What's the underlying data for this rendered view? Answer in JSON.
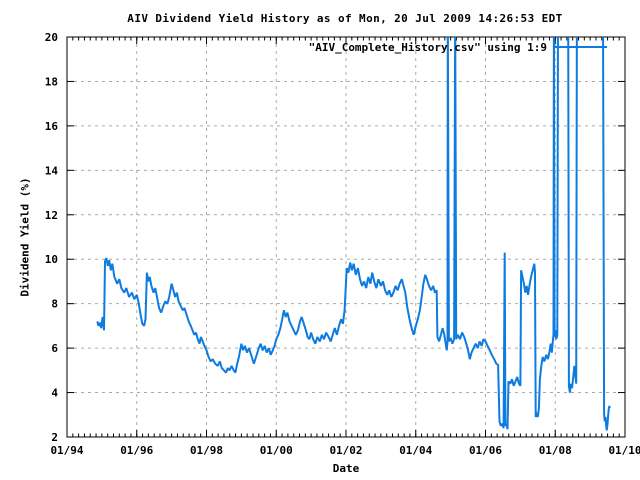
{
  "chart_data": {
    "type": "line",
    "title": "AIV Dividend Yield History as of Mon, 20 Jul 2009 14:26:53 EDT",
    "xlabel": "Date",
    "ylabel": "Dividend Yield (%)",
    "legend": {
      "label": "\"AIV_Complete_History.csv\" using 1:9",
      "position": "top-right-inside"
    },
    "grid": true,
    "x_range": [
      1994,
      2010
    ],
    "y_range": [
      2,
      20
    ],
    "x_ticks": [
      {
        "value": 1994,
        "label": "01/94"
      },
      {
        "value": 1996,
        "label": "01/96"
      },
      {
        "value": 1998,
        "label": "01/98"
      },
      {
        "value": 2000,
        "label": "01/00"
      },
      {
        "value": 2002,
        "label": "01/02"
      },
      {
        "value": 2004,
        "label": "01/04"
      },
      {
        "value": 2006,
        "label": "01/06"
      },
      {
        "value": 2008,
        "label": "01/08"
      },
      {
        "value": 2010,
        "label": "01/10"
      }
    ],
    "y_ticks": [
      2,
      4,
      6,
      8,
      10,
      12,
      14,
      16,
      18,
      20
    ],
    "x_minor_tick_step_years": 0.16667,
    "colors": {
      "line": "#0d7be0",
      "grid": "#aaaaaa",
      "axis": "#000000",
      "background": "#ffffff",
      "text": "#000000"
    },
    "offscale_encoding": "y values of 21 depict spikes that exceed the 20% axis limit (clipped at plot top)",
    "series": [
      {
        "name": "\"AIV_Complete_History.csv\" using 1:9",
        "points": [
          [
            1994.87,
            7.2
          ],
          [
            1994.9,
            7.0
          ],
          [
            1994.94,
            7.15
          ],
          [
            1994.98,
            6.9
          ],
          [
            1995.02,
            7.4
          ],
          [
            1995.06,
            6.8
          ],
          [
            1995.09,
            9.9
          ],
          [
            1995.13,
            10.05
          ],
          [
            1995.17,
            9.7
          ],
          [
            1995.21,
            9.95
          ],
          [
            1995.26,
            9.5
          ],
          [
            1995.3,
            9.8
          ],
          [
            1995.36,
            9.2
          ],
          [
            1995.44,
            8.9
          ],
          [
            1995.5,
            9.1
          ],
          [
            1995.56,
            8.7
          ],
          [
            1995.64,
            8.5
          ],
          [
            1995.7,
            8.7
          ],
          [
            1995.78,
            8.3
          ],
          [
            1995.86,
            8.5
          ],
          [
            1995.93,
            8.2
          ],
          [
            1996.0,
            8.4
          ],
          [
            1996.06,
            8.0
          ],
          [
            1996.11,
            7.5
          ],
          [
            1996.16,
            7.1
          ],
          [
            1996.21,
            7.0
          ],
          [
            1996.25,
            7.3
          ],
          [
            1996.29,
            9.4
          ],
          [
            1996.33,
            9.0
          ],
          [
            1996.37,
            9.2
          ],
          [
            1996.42,
            8.8
          ],
          [
            1996.48,
            8.5
          ],
          [
            1996.53,
            8.7
          ],
          [
            1996.58,
            8.3
          ],
          [
            1996.64,
            7.8
          ],
          [
            1996.7,
            7.6
          ],
          [
            1996.76,
            7.9
          ],
          [
            1996.82,
            8.1
          ],
          [
            1996.88,
            8.0
          ],
          [
            1996.93,
            8.3
          ],
          [
            1997.0,
            8.9
          ],
          [
            1997.05,
            8.6
          ],
          [
            1997.1,
            8.3
          ],
          [
            1997.15,
            8.5
          ],
          [
            1997.2,
            8.1
          ],
          [
            1997.26,
            7.9
          ],
          [
            1997.32,
            7.7
          ],
          [
            1997.37,
            7.8
          ],
          [
            1997.43,
            7.5
          ],
          [
            1997.49,
            7.2
          ],
          [
            1997.55,
            7.0
          ],
          [
            1997.6,
            6.8
          ],
          [
            1997.65,
            6.6
          ],
          [
            1997.7,
            6.7
          ],
          [
            1997.75,
            6.4
          ],
          [
            1997.8,
            6.2
          ],
          [
            1997.84,
            6.5
          ],
          [
            1997.89,
            6.3
          ],
          [
            1997.94,
            6.1
          ],
          [
            1998.0,
            5.9
          ],
          [
            1998.06,
            5.6
          ],
          [
            1998.12,
            5.4
          ],
          [
            1998.18,
            5.5
          ],
          [
            1998.25,
            5.3
          ],
          [
            1998.32,
            5.2
          ],
          [
            1998.38,
            5.4
          ],
          [
            1998.44,
            5.1
          ],
          [
            1998.5,
            5.0
          ],
          [
            1998.56,
            4.9
          ],
          [
            1998.61,
            5.1
          ],
          [
            1998.66,
            5.0
          ],
          [
            1998.72,
            5.2
          ],
          [
            1998.78,
            5.0
          ],
          [
            1998.83,
            4.9
          ],
          [
            1998.88,
            5.3
          ],
          [
            1998.93,
            5.6
          ],
          [
            1999.0,
            6.2
          ],
          [
            1999.05,
            5.9
          ],
          [
            1999.1,
            6.1
          ],
          [
            1999.16,
            5.8
          ],
          [
            1999.22,
            6.0
          ],
          [
            1999.3,
            5.6
          ],
          [
            1999.36,
            5.3
          ],
          [
            1999.42,
            5.6
          ],
          [
            1999.5,
            6.0
          ],
          [
            1999.55,
            6.2
          ],
          [
            1999.61,
            5.9
          ],
          [
            1999.67,
            6.1
          ],
          [
            1999.73,
            5.8
          ],
          [
            1999.79,
            6.0
          ],
          [
            1999.84,
            5.7
          ],
          [
            1999.9,
            5.9
          ],
          [
            1999.95,
            6.1
          ],
          [
            2000.0,
            6.4
          ],
          [
            2000.06,
            6.6
          ],
          [
            2000.12,
            6.9
          ],
          [
            2000.17,
            7.3
          ],
          [
            2000.22,
            7.7
          ],
          [
            2000.27,
            7.4
          ],
          [
            2000.32,
            7.6
          ],
          [
            2000.38,
            7.2
          ],
          [
            2000.44,
            7.0
          ],
          [
            2000.5,
            6.8
          ],
          [
            2000.56,
            6.6
          ],
          [
            2000.62,
            6.8
          ],
          [
            2000.68,
            7.2
          ],
          [
            2000.73,
            7.4
          ],
          [
            2000.79,
            7.1
          ],
          [
            2000.85,
            6.8
          ],
          [
            2000.9,
            6.5
          ],
          [
            2000.95,
            6.4
          ],
          [
            2001.0,
            6.7
          ],
          [
            2001.06,
            6.4
          ],
          [
            2001.12,
            6.2
          ],
          [
            2001.18,
            6.5
          ],
          [
            2001.25,
            6.3
          ],
          [
            2001.31,
            6.6
          ],
          [
            2001.37,
            6.4
          ],
          [
            2001.43,
            6.7
          ],
          [
            2001.5,
            6.5
          ],
          [
            2001.56,
            6.3
          ],
          [
            2001.62,
            6.6
          ],
          [
            2001.68,
            6.9
          ],
          [
            2001.74,
            6.6
          ],
          [
            2001.8,
            7.0
          ],
          [
            2001.86,
            7.3
          ],
          [
            2001.91,
            7.1
          ],
          [
            2001.96,
            7.7
          ],
          [
            2002.02,
            9.6
          ],
          [
            2002.07,
            9.4
          ],
          [
            2002.12,
            9.85
          ],
          [
            2002.17,
            9.5
          ],
          [
            2002.22,
            9.8
          ],
          [
            2002.28,
            9.3
          ],
          [
            2002.34,
            9.6
          ],
          [
            2002.4,
            9.1
          ],
          [
            2002.46,
            8.8
          ],
          [
            2002.52,
            9.0
          ],
          [
            2002.58,
            8.7
          ],
          [
            2002.64,
            9.2
          ],
          [
            2002.7,
            8.9
          ],
          [
            2002.75,
            9.4
          ],
          [
            2002.81,
            9.0
          ],
          [
            2002.87,
            8.7
          ],
          [
            2002.93,
            9.1
          ],
          [
            2003.0,
            8.8
          ],
          [
            2003.06,
            9.0
          ],
          [
            2003.12,
            8.6
          ],
          [
            2003.18,
            8.4
          ],
          [
            2003.24,
            8.6
          ],
          [
            2003.3,
            8.3
          ],
          [
            2003.36,
            8.5
          ],
          [
            2003.42,
            8.8
          ],
          [
            2003.48,
            8.6
          ],
          [
            2003.54,
            8.9
          ],
          [
            2003.6,
            9.1
          ],
          [
            2003.65,
            8.8
          ],
          [
            2003.7,
            8.5
          ],
          [
            2003.76,
            7.8
          ],
          [
            2003.82,
            7.3
          ],
          [
            2003.88,
            6.9
          ],
          [
            2003.94,
            6.6
          ],
          [
            2004.0,
            7.0
          ],
          [
            2004.06,
            7.3
          ],
          [
            2004.12,
            7.7
          ],
          [
            2004.17,
            8.3
          ],
          [
            2004.22,
            8.9
          ],
          [
            2004.27,
            9.3
          ],
          [
            2004.32,
            9.1
          ],
          [
            2004.38,
            8.8
          ],
          [
            2004.44,
            8.6
          ],
          [
            2004.5,
            8.8
          ],
          [
            2004.55,
            8.5
          ],
          [
            2004.6,
            8.6
          ],
          [
            2004.62,
            6.5
          ],
          [
            2004.67,
            6.3
          ],
          [
            2004.72,
            6.6
          ],
          [
            2004.77,
            6.9
          ],
          [
            2004.82,
            6.6
          ],
          [
            2004.86,
            6.2
          ],
          [
            2004.89,
            5.9
          ],
          [
            2004.91,
            6.3
          ],
          [
            2004.92,
            21
          ],
          [
            2004.95,
            6.3
          ],
          [
            2005.0,
            6.45
          ],
          [
            2005.05,
            6.2
          ],
          [
            2005.1,
            6.4
          ],
          [
            2005.13,
            21
          ],
          [
            2005.16,
            6.4
          ],
          [
            2005.21,
            6.6
          ],
          [
            2005.27,
            6.4
          ],
          [
            2005.33,
            6.7
          ],
          [
            2005.39,
            6.5
          ],
          [
            2005.45,
            6.2
          ],
          [
            2005.5,
            5.9
          ],
          [
            2005.55,
            5.5
          ],
          [
            2005.6,
            5.8
          ],
          [
            2005.66,
            6.0
          ],
          [
            2005.72,
            6.2
          ],
          [
            2005.78,
            6.0
          ],
          [
            2005.83,
            6.3
          ],
          [
            2005.89,
            6.1
          ],
          [
            2005.94,
            6.4
          ],
          [
            2006.0,
            6.3
          ],
          [
            2006.06,
            6.1
          ],
          [
            2006.12,
            5.9
          ],
          [
            2006.18,
            5.7
          ],
          [
            2006.25,
            5.5
          ],
          [
            2006.31,
            5.3
          ],
          [
            2006.36,
            5.25
          ],
          [
            2006.4,
            2.7
          ],
          [
            2006.44,
            2.5
          ],
          [
            2006.48,
            2.6
          ],
          [
            2006.52,
            2.4
          ],
          [
            2006.55,
            10.3
          ],
          [
            2006.57,
            2.5
          ],
          [
            2006.6,
            2.6
          ],
          [
            2006.63,
            2.35
          ],
          [
            2006.66,
            4.5
          ],
          [
            2006.71,
            4.4
          ],
          [
            2006.76,
            4.6
          ],
          [
            2006.81,
            4.3
          ],
          [
            2006.86,
            4.5
          ],
          [
            2006.91,
            4.7
          ],
          [
            2006.96,
            4.4
          ],
          [
            2007.0,
            4.3
          ],
          [
            2007.02,
            9.5
          ],
          [
            2007.06,
            9.2
          ],
          [
            2007.1,
            8.9
          ],
          [
            2007.14,
            8.5
          ],
          [
            2007.18,
            8.8
          ],
          [
            2007.22,
            8.4
          ],
          [
            2007.27,
            8.9
          ],
          [
            2007.32,
            9.3
          ],
          [
            2007.37,
            9.6
          ],
          [
            2007.4,
            9.8
          ],
          [
            2007.42,
            9.4
          ],
          [
            2007.44,
            2.9
          ],
          [
            2007.47,
            3.1
          ],
          [
            2007.5,
            2.9
          ],
          [
            2007.53,
            3.3
          ],
          [
            2007.56,
            4.6
          ],
          [
            2007.6,
            5.2
          ],
          [
            2007.64,
            5.6
          ],
          [
            2007.69,
            5.4
          ],
          [
            2007.74,
            5.7
          ],
          [
            2007.79,
            5.5
          ],
          [
            2007.84,
            5.9
          ],
          [
            2007.87,
            6.2
          ],
          [
            2007.9,
            5.8
          ],
          [
            2007.93,
            6.3
          ],
          [
            2007.95,
            6.6
          ],
          [
            2007.96,
            21
          ],
          [
            2007.98,
            6.5
          ],
          [
            2008.0,
            6.8
          ],
          [
            2008.03,
            6.4
          ],
          [
            2008.06,
            6.6
          ],
          [
            2008.08,
            21
          ],
          [
            2008.37,
            21
          ],
          [
            2008.39,
            4.3
          ],
          [
            2008.42,
            4.0
          ],
          [
            2008.45,
            4.4
          ],
          [
            2008.48,
            4.2
          ],
          [
            2008.51,
            4.6
          ],
          [
            2008.53,
            4.9
          ],
          [
            2008.55,
            5.2
          ],
          [
            2008.58,
            4.7
          ],
          [
            2008.6,
            4.4
          ],
          [
            2008.62,
            21
          ],
          [
            2009.37,
            21
          ],
          [
            2009.4,
            3.0
          ],
          [
            2009.42,
            2.7
          ],
          [
            2009.44,
            2.9
          ],
          [
            2009.46,
            2.5
          ],
          [
            2009.475,
            2.3
          ],
          [
            2009.49,
            2.45
          ],
          [
            2009.51,
            2.8
          ],
          [
            2009.53,
            3.2
          ],
          [
            2009.55,
            3.4
          ],
          [
            2009.56,
            3.3
          ]
        ]
      }
    ]
  }
}
